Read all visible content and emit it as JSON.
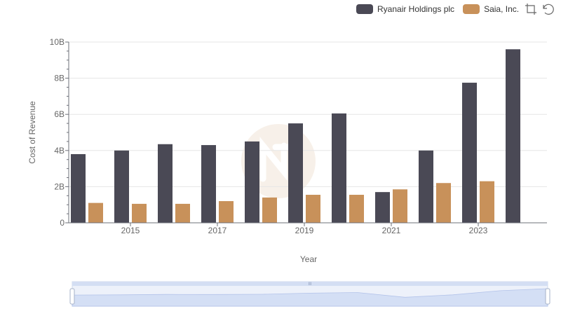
{
  "chart_data": {
    "type": "bar",
    "title": "",
    "xlabel": "Year",
    "ylabel": "Cost of Revenue",
    "x": [
      2014,
      2015,
      2016,
      2017,
      2018,
      2019,
      2020,
      2021,
      2022,
      2023,
      2024
    ],
    "x_tick_labels": [
      "2015",
      "2017",
      "2019",
      "2021",
      "2023"
    ],
    "y_tick_labels": [
      "0",
      "2B",
      "4B",
      "6B",
      "8B",
      "10B"
    ],
    "ylim": [
      0,
      10
    ],
    "unit": "billions",
    "grid": true,
    "legend_position": "top-right",
    "series": [
      {
        "name": "Ryanair Holdings plc",
        "color": "#4a4955",
        "values": [
          3.8,
          4.0,
          4.35,
          4.3,
          4.5,
          5.5,
          6.05,
          1.7,
          4.0,
          7.75,
          9.6
        ]
      },
      {
        "name": "Saia, Inc.",
        "color": "#c8915a",
        "values": [
          1.1,
          1.05,
          1.05,
          1.2,
          1.4,
          1.55,
          1.55,
          1.85,
          2.2,
          2.3,
          null
        ]
      }
    ]
  },
  "toolbox": {
    "zoom_icon": "zoom-icon",
    "restore_icon": "restore-icon"
  },
  "datazoom": {
    "range_start": 0,
    "range_end": 100
  }
}
